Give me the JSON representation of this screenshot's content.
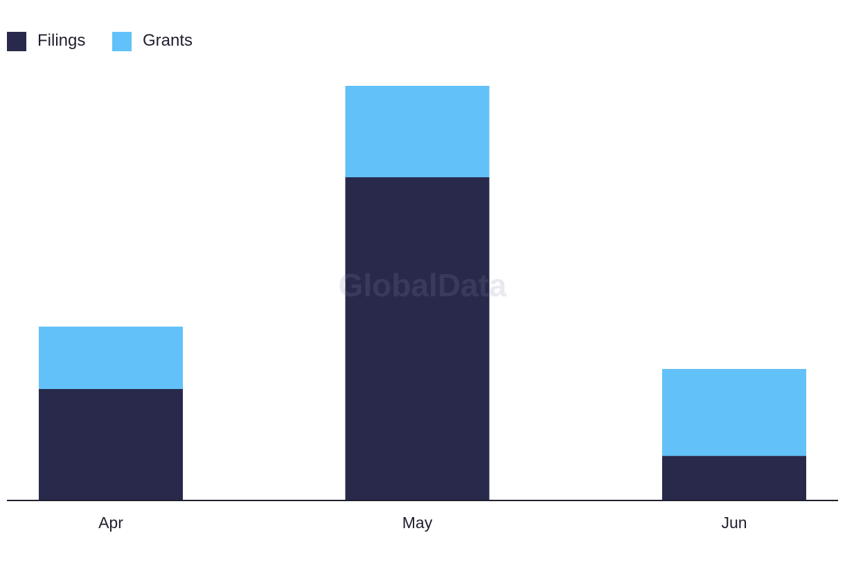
{
  "chart_data": {
    "type": "bar",
    "stacked": true,
    "categories": [
      "Apr",
      "May",
      "Jun"
    ],
    "series": [
      {
        "name": "Filings",
        "values": [
          5,
          14.5,
          2
        ],
        "color": "#28294b"
      },
      {
        "name": "Grants",
        "values": [
          2.8,
          4.1,
          3.9
        ],
        "color": "#62c1f8"
      }
    ],
    "ylim": [
      0,
      18.6
    ],
    "grid": false,
    "legend": "top-left",
    "watermark": "GlobalData"
  }
}
